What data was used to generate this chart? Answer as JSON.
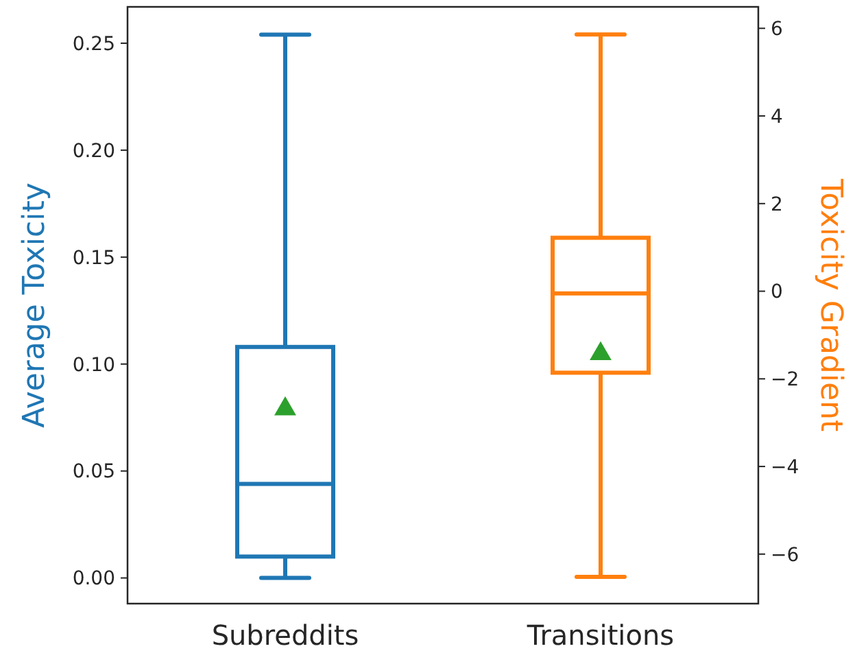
{
  "chart_data": {
    "type": "box",
    "categories": [
      "Subreddits",
      "Transitions"
    ],
    "ylabel": "Average Toxicity",
    "y2label": "Toxicity Gradient",
    "ylim": [
      -0.012,
      0.267
    ],
    "yticks": [
      {
        "value": 0,
        "label": "0.00"
      },
      {
        "value": 0.05,
        "label": "0.05"
      },
      {
        "value": 0.1,
        "label": "0.10"
      },
      {
        "value": 0.15,
        "label": "0.15"
      },
      {
        "value": 0.2,
        "label": "0.20"
      },
      {
        "value": 0.25,
        "label": "0.25"
      }
    ],
    "y2lim": [
      -7.13,
      6.49
    ],
    "y2ticks": [
      {
        "value": -6,
        "label": "−6"
      },
      {
        "value": -4,
        "label": "−4"
      },
      {
        "value": -2,
        "label": "−2"
      },
      0,
      2,
      4,
      6
    ],
    "grid": false,
    "series": [
      {
        "color": "#1f77b4",
        "axis": "y",
        "boxes": [
          {
            "low": 0.0,
            "q1": 0.01,
            "median": 0.044,
            "q3": 0.108,
            "high": 0.254
          },
          null
        ]
      },
      {
        "color": "#ff7f0e",
        "axis": "y2",
        "boxes": [
          null,
          {
            "low": -6.52,
            "q1": -1.86,
            "median": -0.05,
            "q3": 1.22,
            "high": 5.86
          }
        ]
      },
      {
        "type": "scatter",
        "color": "#2ca02c",
        "axis": "y",
        "marker": "triangle",
        "x": [
          "Subreddits"
        ],
        "values": [
          0.079
        ]
      },
      {
        "type": "scatter",
        "color": "#2ca02c",
        "axis": "y2",
        "marker": "triangle",
        "x": [
          "Transitions"
        ],
        "values": [
          -1.43
        ]
      }
    ]
  }
}
